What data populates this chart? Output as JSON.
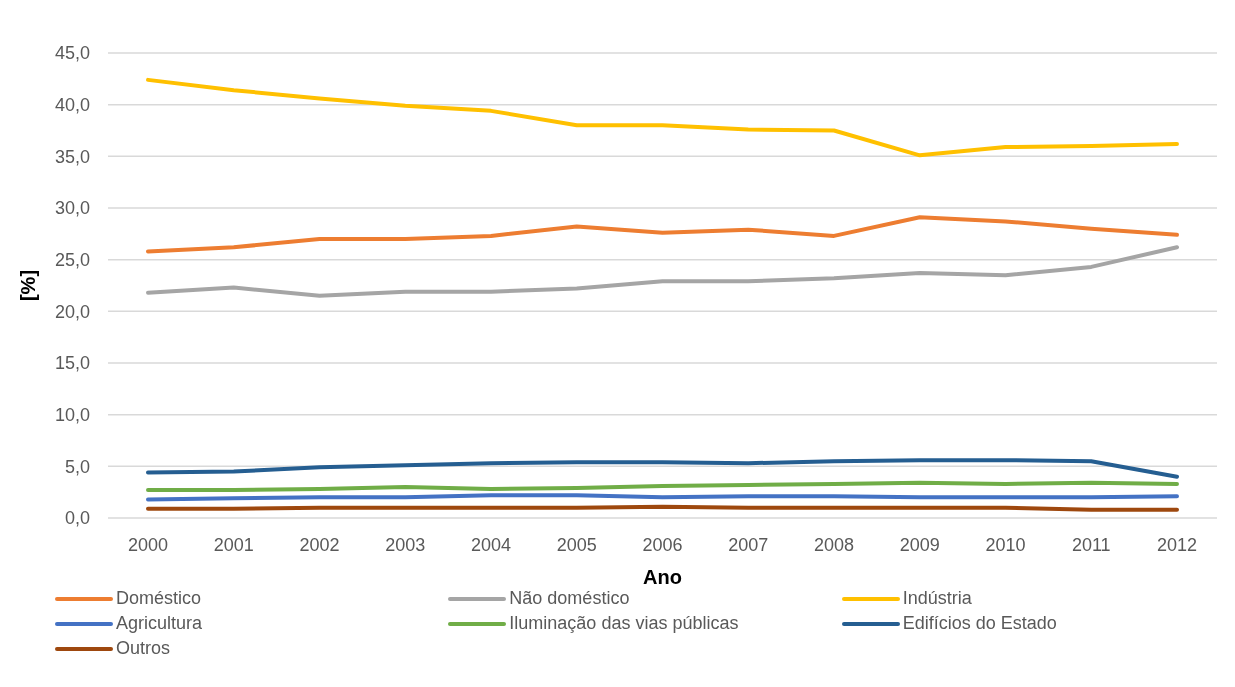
{
  "chart_data": {
    "type": "line",
    "xlabel": "Ano",
    "ylabel": "[%]",
    "categories": [
      "2000",
      "2001",
      "2002",
      "2003",
      "2004",
      "2005",
      "2006",
      "2007",
      "2008",
      "2009",
      "2010",
      "2011",
      "2012"
    ],
    "series": [
      {
        "name": "Doméstico",
        "color": "#ed7d31",
        "values": [
          25.8,
          26.2,
          27.0,
          27.0,
          27.3,
          28.2,
          27.6,
          27.9,
          27.3,
          29.1,
          28.7,
          28.0,
          27.4
        ]
      },
      {
        "name": "Não doméstico",
        "color": "#a5a5a5",
        "values": [
          21.8,
          22.3,
          21.5,
          21.9,
          21.9,
          22.2,
          22.9,
          22.9,
          23.2,
          23.7,
          23.5,
          24.3,
          26.2
        ]
      },
      {
        "name": "Indústria",
        "color": "#ffc000",
        "values": [
          42.4,
          41.4,
          40.6,
          39.9,
          39.4,
          38.0,
          38.0,
          37.6,
          37.5,
          35.1,
          35.9,
          36.0,
          36.2
        ]
      },
      {
        "name": "Agricultura",
        "color": "#4472c4",
        "values": [
          1.8,
          1.9,
          2.0,
          2.0,
          2.2,
          2.2,
          2.0,
          2.1,
          2.1,
          2.0,
          2.0,
          2.0,
          2.1
        ]
      },
      {
        "name": "Iluminação das vias públicas",
        "color": "#70ad47",
        "values": [
          2.7,
          2.7,
          2.8,
          3.0,
          2.8,
          2.9,
          3.1,
          3.2,
          3.3,
          3.4,
          3.3,
          3.4,
          3.3
        ]
      },
      {
        "name": "Edifícios do Estado",
        "color": "#255e91",
        "values": [
          4.4,
          4.5,
          4.9,
          5.1,
          5.3,
          5.4,
          5.4,
          5.3,
          5.5,
          5.6,
          5.6,
          5.5,
          4.0
        ]
      },
      {
        "name": "Outros",
        "color": "#9e480e",
        "values": [
          0.9,
          0.9,
          1.0,
          1.0,
          1.0,
          1.0,
          1.1,
          1.0,
          1.0,
          1.0,
          1.0,
          0.8,
          0.8
        ]
      }
    ],
    "ylim": [
      0,
      45
    ],
    "yticks": [
      {
        "value": 0,
        "label": "0,0"
      },
      {
        "value": 5,
        "label": "5,0"
      },
      {
        "value": 10,
        "label": "10,0"
      },
      {
        "value": 15,
        "label": "15,0"
      },
      {
        "value": 20,
        "label": "20,0"
      },
      {
        "value": 25,
        "label": "25,0"
      },
      {
        "value": 30,
        "label": "30,0"
      },
      {
        "value": 35,
        "label": "35,0"
      },
      {
        "value": 40,
        "label": "40,0"
      },
      {
        "value": 45,
        "label": "45,0"
      }
    ],
    "grid": "y",
    "legend": "bottom",
    "marker": "none",
    "line_style": "solid"
  }
}
